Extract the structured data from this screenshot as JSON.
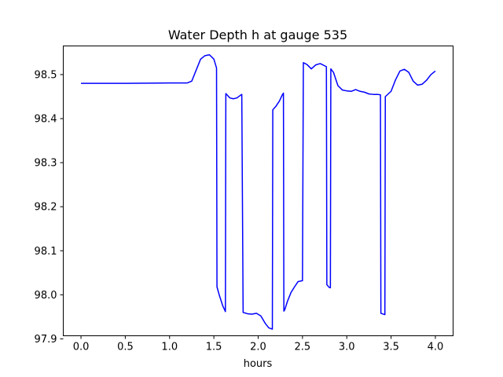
{
  "chart_data": {
    "type": "line",
    "title": "Water Depth h at gauge 535",
    "xlabel": "hours",
    "ylabel": "",
    "xlim": [
      -0.2,
      4.2
    ],
    "ylim": [
      97.907,
      98.565
    ],
    "xticks": [
      {
        "value": 0.0,
        "label": "0.0"
      },
      {
        "value": 0.5,
        "label": "0.5"
      },
      {
        "value": 1.0,
        "label": "1.0"
      },
      {
        "value": 1.5,
        "label": "1.5"
      },
      {
        "value": 2.0,
        "label": "2.0"
      },
      {
        "value": 2.5,
        "label": "2.5"
      },
      {
        "value": 3.0,
        "label": "3.0"
      },
      {
        "value": 3.5,
        "label": "3.5"
      },
      {
        "value": 4.0,
        "label": "4.0"
      }
    ],
    "yticks": [
      {
        "value": 97.9,
        "label": "97.9"
      },
      {
        "value": 98.0,
        "label": "98.0"
      },
      {
        "value": 98.1,
        "label": "98.1"
      },
      {
        "value": 98.2,
        "label": "98.2"
      },
      {
        "value": 98.3,
        "label": "98.3"
      },
      {
        "value": 98.4,
        "label": "98.4"
      },
      {
        "value": 98.5,
        "label": "98.5"
      }
    ],
    "grid": false,
    "series": [
      {
        "color": "#0000ff",
        "x": [
          0.0,
          0.5,
          1.0,
          1.2,
          1.25,
          1.3,
          1.35,
          1.4,
          1.45,
          1.5,
          1.53,
          1.535,
          1.56,
          1.6,
          1.63,
          1.635,
          1.68,
          1.72,
          1.76,
          1.8,
          1.815,
          1.83,
          1.88,
          1.93,
          1.98,
          2.03,
          2.08,
          2.12,
          2.16,
          2.165,
          2.2,
          2.24,
          2.27,
          2.285,
          2.29,
          2.3,
          2.33,
          2.37,
          2.41,
          2.45,
          2.5,
          2.51,
          2.55,
          2.6,
          2.65,
          2.7,
          2.75,
          2.77,
          2.775,
          2.8,
          2.815,
          2.82,
          2.85,
          2.9,
          2.95,
          3.0,
          3.05,
          3.1,
          3.15,
          3.2,
          3.25,
          3.3,
          3.35,
          3.38,
          3.385,
          3.43,
          3.435,
          3.5,
          3.55,
          3.6,
          3.65,
          3.7,
          3.75,
          3.8,
          3.85,
          3.9,
          3.95,
          4.0
        ],
        "y": [
          98.48,
          98.48,
          98.481,
          98.481,
          98.485,
          98.51,
          98.535,
          98.543,
          98.545,
          98.535,
          98.515,
          98.018,
          98.0,
          97.975,
          97.962,
          98.457,
          98.447,
          98.445,
          98.447,
          98.453,
          98.455,
          97.96,
          97.957,
          97.956,
          97.958,
          97.952,
          97.935,
          97.925,
          97.922,
          98.42,
          98.428,
          98.44,
          98.453,
          98.458,
          97.963,
          97.966,
          97.985,
          98.005,
          98.018,
          98.03,
          98.032,
          98.527,
          98.523,
          98.513,
          98.522,
          98.525,
          98.52,
          98.518,
          98.023,
          98.017,
          98.016,
          98.513,
          98.505,
          98.475,
          98.465,
          98.463,
          98.462,
          98.466,
          98.462,
          98.46,
          98.456,
          98.455,
          98.455,
          98.454,
          97.958,
          97.955,
          98.45,
          98.462,
          98.488,
          98.508,
          98.512,
          98.505,
          98.485,
          98.476,
          98.478,
          98.487,
          98.5,
          98.508
        ]
      }
    ]
  }
}
